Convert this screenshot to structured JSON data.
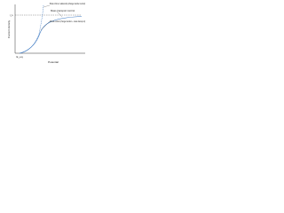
{
  "diagram": {
    "y_axis_label": "Current density",
    "x_axis_label": "Potential",
    "limit_label": "i_L",
    "origin_label": "E_eq",
    "annotations": [
      "Butler-Volmer relationship (charge transfer control)",
      "Mass transport control",
      "Mixed control (charge transfer + mass transport)"
    ]
  }
}
